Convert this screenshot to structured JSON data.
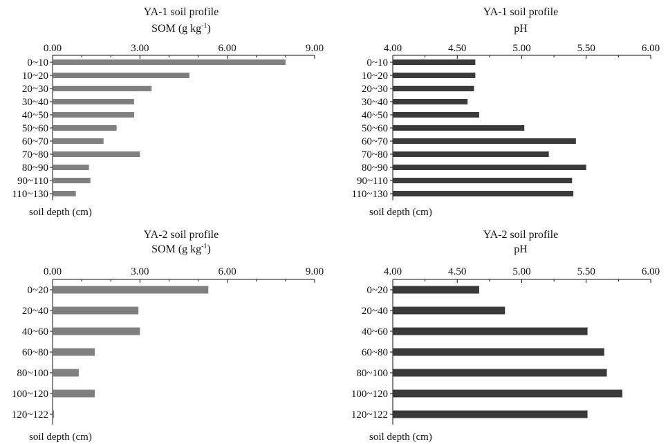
{
  "chart_data": [
    {
      "type": "bar",
      "orientation": "horizontal",
      "title": "YA-1 soil profile",
      "subtitle_main": "SOM (g kg",
      "subtitle_sup": "-1",
      "subtitle_end": ")",
      "ylabel": "soil depth (cm)",
      "categories": [
        "0~10",
        "10~20",
        "20~30",
        "30~40",
        "40~50",
        "50~60",
        "60~70",
        "70~80",
        "80~90",
        "90~110",
        "110~130"
      ],
      "values": [
        8.0,
        4.7,
        3.4,
        2.8,
        2.8,
        2.2,
        1.75,
        3.0,
        1.25,
        1.3,
        0.8
      ],
      "xlim": [
        0,
        9
      ],
      "xticks": [
        "0.00",
        "3.00",
        "6.00",
        "9.00"
      ],
      "bar_color": "#808080"
    },
    {
      "type": "bar",
      "orientation": "horizontal",
      "title": "YA-1 soil profile",
      "subtitle_main": "pH",
      "subtitle_sup": "",
      "subtitle_end": "",
      "ylabel": "soil depth (cm)",
      "categories": [
        "0~10",
        "10~20",
        "20~30",
        "30~40",
        "40~50",
        "50~60",
        "60~70",
        "70~80",
        "80~90",
        "90~110",
        "110~130"
      ],
      "values": [
        4.64,
        4.64,
        4.63,
        4.58,
        4.67,
        5.02,
        5.42,
        5.21,
        5.5,
        5.39,
        5.4
      ],
      "xlim": [
        4,
        6
      ],
      "xticks": [
        "4.00",
        "4.50",
        "5.00",
        "5.50",
        "6.00"
      ],
      "bar_color": "#3a3a3a"
    },
    {
      "type": "bar",
      "orientation": "horizontal",
      "title": "YA-2 soil profile",
      "subtitle_main": "SOM (g kg",
      "subtitle_sup": "-1",
      "subtitle_end": ")",
      "ylabel": "soil depth (cm)",
      "categories": [
        "0~20",
        "20~40",
        "40~60",
        "60~80",
        "80~100",
        "100~120",
        "120~122"
      ],
      "values": [
        5.35,
        2.95,
        3.0,
        1.45,
        0.9,
        1.45,
        0.05
      ],
      "xlim": [
        0,
        9
      ],
      "xticks": [
        "0.00",
        "3.00",
        "6.00",
        "9.00"
      ],
      "bar_color": "#808080"
    },
    {
      "type": "bar",
      "orientation": "horizontal",
      "title": "YA-2 soil profile",
      "subtitle_main": "pH",
      "subtitle_sup": "",
      "subtitle_end": "",
      "ylabel": "soil depth (cm)",
      "categories": [
        "0~20",
        "20~40",
        "40~60",
        "60~80",
        "80~100",
        "100~120",
        "120~122"
      ],
      "values": [
        4.67,
        4.87,
        5.51,
        5.64,
        5.66,
        5.78,
        5.51
      ],
      "xlim": [
        4,
        6
      ],
      "xticks": [
        "4.00",
        "4.50",
        "5.00",
        "5.50",
        "6.00"
      ],
      "bar_color": "#3a3a3a"
    }
  ]
}
